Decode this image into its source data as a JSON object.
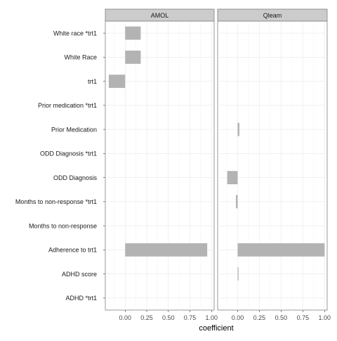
{
  "chart_data": {
    "type": "bar",
    "orientation": "horizontal",
    "facets": [
      "AMOL",
      "Qleam"
    ],
    "categories": [
      "White race *trt1",
      "White Race",
      "trt1",
      "Prior medication *trt1",
      "Prior Medication",
      "ODD Diagnosis *trt1",
      "ODD Diagnosis",
      "Months to non-response *trt1",
      "Months to non-response",
      "Adherence to trt1",
      "ADHD score",
      "ADHD *trt1"
    ],
    "series": [
      {
        "facet": "AMOL",
        "values": [
          0.18,
          0.18,
          -0.19,
          0,
          0,
          0,
          0,
          0,
          0,
          0.95,
          0,
          0
        ]
      },
      {
        "facet": "Qleam",
        "values": [
          0,
          0,
          0,
          0,
          0.02,
          0,
          -0.12,
          -0.02,
          0,
          1.0,
          0.01,
          0
        ]
      }
    ],
    "xlabel": "coefficient",
    "ylabel": "",
    "xlim": [
      -0.23,
      1.03
    ],
    "xticks": [
      0.0,
      0.25,
      0.5,
      0.75,
      1.0
    ],
    "xtick_labels": [
      "0.00",
      "0.25",
      "0.50",
      "0.75",
      "1.00"
    ],
    "bar_color": "#b3b3b3",
    "panel_background": "#ffffff",
    "strip_fill": "#cccccc",
    "grid": true,
    "grid_color": "#ebebeb"
  }
}
